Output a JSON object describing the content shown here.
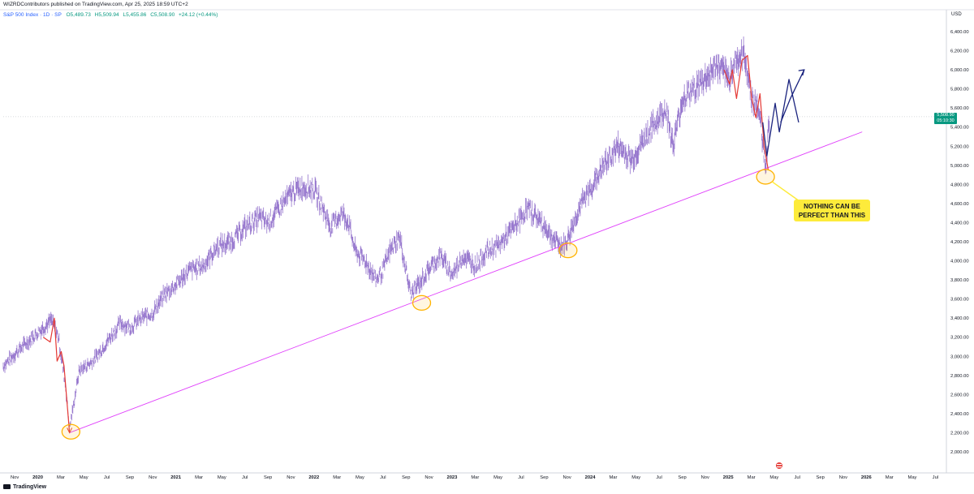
{
  "header": {
    "publish_line": "WIZRDContributors published on TradingView.com, Apr 25, 2025 18:59 UTC+2",
    "symbol": "S&P 500 Index · 1D · SP",
    "ohlc": {
      "open": "O5,489.73",
      "high": "H5,509.94",
      "low": "L5,455.86",
      "close": "C5,508.90",
      "change": "+24.12 (+0.44%)"
    }
  },
  "price_tag": {
    "value": "5,508.90",
    "countdown": "05:10:30"
  },
  "annotation": {
    "text": "NOTHING CAN BE\nPERFECT THAN THIS"
  },
  "footer": {
    "logo": "TradingView"
  },
  "colors": {
    "candles": "#9575cd",
    "trendline": "#e040fb",
    "circles": "#ffb300",
    "red_path": "#e53935",
    "blue_path": "#1a237e",
    "price_tag": "#089981",
    "annotation_bg": "#fdeb3b"
  },
  "chart_data": {
    "type": "line",
    "xlabel": "",
    "ylabel": "USD",
    "ylim": [
      2000,
      6400
    ],
    "y_ticks": [
      "6,400.00",
      "6,200.00",
      "6,000.00",
      "5,800.00",
      "5,600.00",
      "5,400.00",
      "5,200.00",
      "5,000.00",
      "4,800.00",
      "4,600.00",
      "4,400.00",
      "4,200.00",
      "4,000.00",
      "3,800.00",
      "3,600.00",
      "3,400.00",
      "3,200.00",
      "3,000.00",
      "2,800.00",
      "2,600.00",
      "2,400.00",
      "2,200.00",
      "2,000.00"
    ],
    "y_tick_values": [
      6400,
      6200,
      6000,
      5800,
      5600,
      5400,
      5200,
      5000,
      4800,
      4600,
      4400,
      4200,
      4000,
      3800,
      3600,
      3400,
      3200,
      3000,
      2800,
      2600,
      2400,
      2200,
      2000
    ],
    "x_ticks": [
      "Nov",
      "2020",
      "Mar",
      "May",
      "Jul",
      "Sep",
      "Nov",
      "2021",
      "Mar",
      "May",
      "Jul",
      "Sep",
      "Nov",
      "2022",
      "Mar",
      "May",
      "Jul",
      "Sep",
      "Nov",
      "2023",
      "Mar",
      "May",
      "Jul",
      "Sep",
      "Nov",
      "2024",
      "Mar",
      "May",
      "Jul",
      "Sep",
      "Nov",
      "2025",
      "Mar",
      "May",
      "Jul",
      "Sep",
      "Nov",
      "2026",
      "Mar",
      "May",
      "Jul"
    ],
    "x_tick_dates": [
      2019.833,
      2020.0,
      2020.167,
      2020.333,
      2020.5,
      2020.667,
      2020.833,
      2021.0,
      2021.167,
      2021.333,
      2021.5,
      2021.667,
      2021.833,
      2022.0,
      2022.167,
      2022.333,
      2022.5,
      2022.667,
      2022.833,
      2023.0,
      2023.167,
      2023.333,
      2023.5,
      2023.667,
      2023.833,
      2024.0,
      2024.167,
      2024.333,
      2024.5,
      2024.667,
      2024.833,
      2025.0,
      2025.167,
      2025.333,
      2025.5,
      2025.667,
      2025.833,
      2026.0,
      2026.167,
      2026.333,
      2026.5
    ],
    "price_series": {
      "name": "S&P 500 Index",
      "x": [
        2019.75,
        2019.85,
        2020.0,
        2020.1,
        2020.15,
        2020.2,
        2020.23,
        2020.26,
        2020.3,
        2020.4,
        2020.5,
        2020.6,
        2020.67,
        2020.75,
        2020.83,
        2020.92,
        2021.0,
        2021.1,
        2021.2,
        2021.3,
        2021.4,
        2021.5,
        2021.6,
        2021.67,
        2021.75,
        2021.83,
        2021.92,
        2022.0,
        2022.05,
        2022.12,
        2022.2,
        2022.25,
        2022.3,
        2022.37,
        2022.45,
        2022.5,
        2022.55,
        2022.62,
        2022.7,
        2022.78,
        2022.85,
        2022.92,
        2023.0,
        2023.08,
        2023.17,
        2023.25,
        2023.33,
        2023.42,
        2023.5,
        2023.55,
        2023.62,
        2023.7,
        2023.75,
        2023.8,
        2023.83,
        2023.92,
        2024.0,
        2024.1,
        2024.2,
        2024.27,
        2024.3,
        2024.4,
        2024.5,
        2024.55,
        2024.6,
        2024.67,
        2024.75,
        2024.83,
        2024.92,
        2025.0,
        2025.05,
        2025.12,
        2025.17,
        2025.22,
        2025.27,
        2025.3
      ],
      "y": [
        2900,
        3050,
        3250,
        3380,
        3200,
        2700,
        2250,
        2500,
        2850,
        2950,
        3150,
        3350,
        3300,
        3400,
        3450,
        3650,
        3750,
        3900,
        3950,
        4150,
        4200,
        4350,
        4450,
        4400,
        4550,
        4700,
        4780,
        4750,
        4600,
        4350,
        4500,
        4400,
        4100,
        4000,
        3800,
        3900,
        4100,
        4250,
        3650,
        3800,
        3950,
        4050,
        3850,
        4050,
        3950,
        4100,
        4150,
        4300,
        4450,
        4550,
        4450,
        4300,
        4200,
        4150,
        4200,
        4550,
        4750,
        5000,
        5200,
        5100,
        5050,
        5300,
        5500,
        5600,
        5200,
        5700,
        5800,
        5900,
        6050,
        5900,
        6100,
        6150,
        5700,
        5600,
        5000,
        5500
      ]
    },
    "trendline": {
      "x": [
        2020.23,
        2025.97
      ],
      "y": [
        2200,
        5350
      ]
    },
    "support_circles": [
      {
        "x": 2020.24,
        "y": 2210
      },
      {
        "x": 2022.78,
        "y": 3560
      },
      {
        "x": 2023.84,
        "y": 4110
      },
      {
        "x": 2025.27,
        "y": 4880
      }
    ],
    "red_path": {
      "x": [
        2020.04,
        2020.09,
        2020.12,
        2020.14,
        2020.17,
        2020.19,
        2020.23
      ],
      "y": [
        3200,
        3150,
        3400,
        2950,
        3050,
        2900,
        2200
      ]
    },
    "red_path_2": {
      "x": [
        2024.97,
        2025.01,
        2025.03,
        2025.06,
        2025.1,
        2025.14,
        2025.17,
        2025.2,
        2025.23,
        2025.26,
        2025.29
      ],
      "y": [
        6000,
        5850,
        6000,
        5700,
        6100,
        6150,
        5700,
        5500,
        5750,
        5200,
        4950
      ]
    },
    "blue_projection": {
      "x": [
        2025.25,
        2025.28,
        2025.34,
        2025.37,
        2025.44,
        2025.51
      ],
      "y": [
        5450,
        5100,
        5650,
        5350,
        5900,
        5450
      ]
    },
    "blue_projection_2": {
      "x": [
        2025.38,
        2025.45,
        2025.55
      ],
      "y": [
        5450,
        5700,
        6000
      ]
    }
  }
}
